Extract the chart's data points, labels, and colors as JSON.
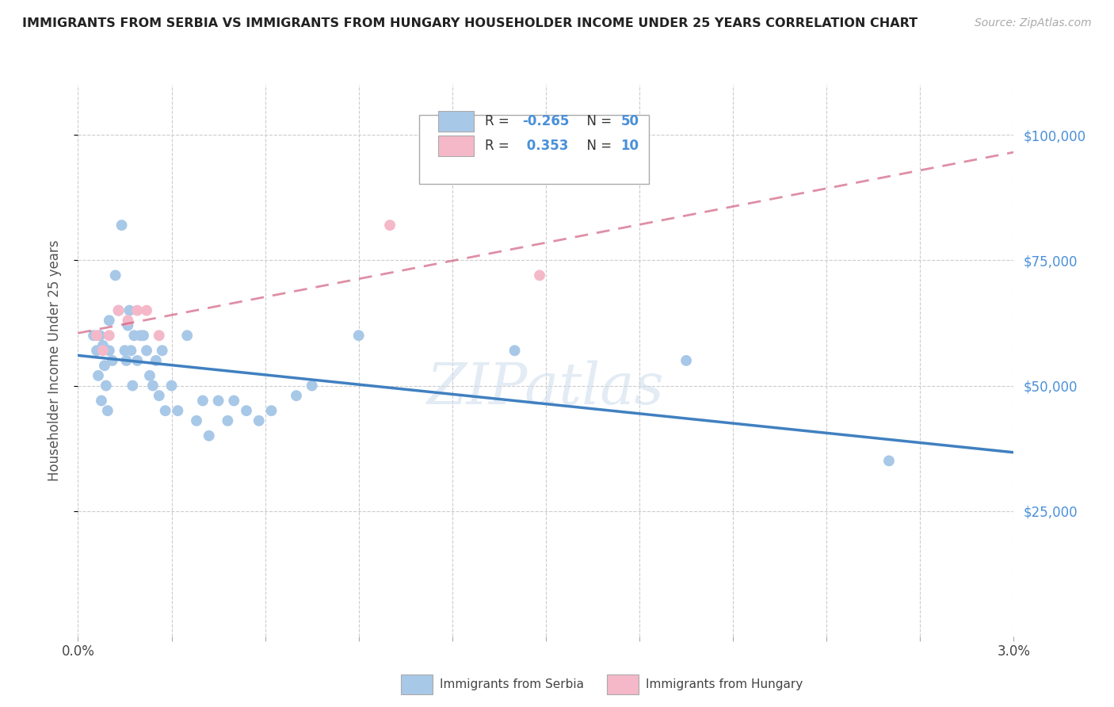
{
  "title": "IMMIGRANTS FROM SERBIA VS IMMIGRANTS FROM HUNGARY HOUSEHOLDER INCOME UNDER 25 YEARS CORRELATION CHART",
  "source": "Source: ZipAtlas.com",
  "ylabel": "Householder Income Under 25 years",
  "xlim": [
    0.0,
    0.03
  ],
  "ylim": [
    0,
    110000
  ],
  "xtick_vals": [
    0.0,
    0.003,
    0.006,
    0.009,
    0.012,
    0.015,
    0.018,
    0.021,
    0.024,
    0.027,
    0.03
  ],
  "xtick_labels_major": {
    "0.0": "0.0%",
    "0.03": "3.0%"
  },
  "ytick_vals": [
    25000,
    50000,
    75000,
    100000
  ],
  "ytick_labels": [
    "$25,000",
    "$50,000",
    "$75,000",
    "$100,000"
  ],
  "serbia_color": "#a8c8e8",
  "hungary_color": "#f5b8c8",
  "serbia_line_color": "#4080c0",
  "hungary_line_color": "#d06080",
  "serbia_R": -0.265,
  "serbia_N": 50,
  "hungary_R": 0.353,
  "hungary_N": 10,
  "watermark": "ZIPatlas",
  "serbia_x": [
    0.0005,
    0.0006,
    0.00065,
    0.0007,
    0.00075,
    0.0008,
    0.00085,
    0.0009,
    0.00095,
    0.001,
    0.001,
    0.0011,
    0.0012,
    0.0013,
    0.0014,
    0.0015,
    0.00155,
    0.0016,
    0.00165,
    0.0017,
    0.00175,
    0.0018,
    0.0019,
    0.002,
    0.0021,
    0.0022,
    0.0023,
    0.0024,
    0.0025,
    0.0026,
    0.0027,
    0.0028,
    0.003,
    0.0032,
    0.0035,
    0.0038,
    0.004,
    0.0042,
    0.0045,
    0.0048,
    0.005,
    0.0054,
    0.0058,
    0.0062,
    0.007,
    0.0075,
    0.009,
    0.014,
    0.0195,
    0.026
  ],
  "serbia_y": [
    60000,
    57000,
    52000,
    60000,
    47000,
    58000,
    54000,
    50000,
    45000,
    63000,
    57000,
    55000,
    72000,
    65000,
    82000,
    57000,
    55000,
    62000,
    65000,
    57000,
    50000,
    60000,
    55000,
    60000,
    60000,
    57000,
    52000,
    50000,
    55000,
    48000,
    57000,
    45000,
    50000,
    45000,
    60000,
    43000,
    47000,
    40000,
    47000,
    43000,
    47000,
    45000,
    43000,
    45000,
    48000,
    50000,
    60000,
    57000,
    55000,
    35000
  ],
  "hungary_x": [
    0.0006,
    0.0008,
    0.001,
    0.0013,
    0.0016,
    0.0019,
    0.0022,
    0.0026,
    0.01,
    0.0148
  ],
  "hungary_y": [
    60000,
    57000,
    60000,
    65000,
    63000,
    65000,
    65000,
    60000,
    82000,
    72000
  ]
}
